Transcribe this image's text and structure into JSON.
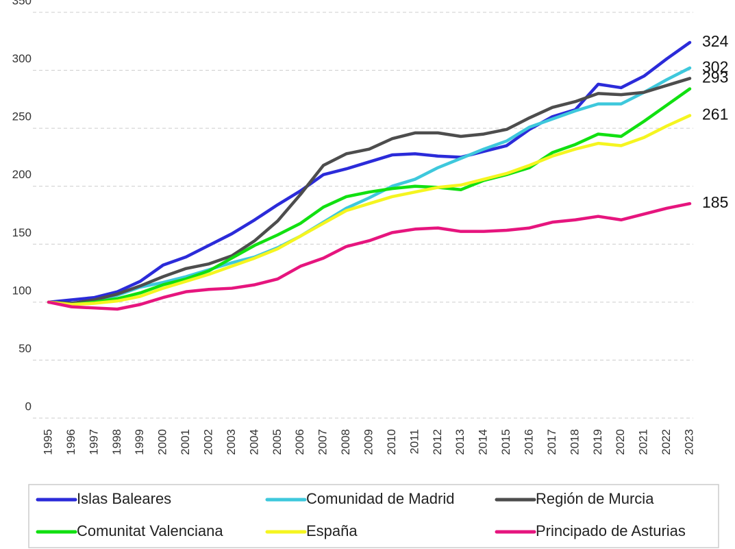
{
  "chart_data": {
    "type": "line",
    "categories": [
      "1995",
      "1996",
      "1997",
      "1998",
      "1999",
      "2000",
      "2001",
      "2002",
      "2003",
      "2004",
      "2005",
      "2006",
      "2007",
      "2008",
      "2009",
      "2010",
      "2011",
      "2012",
      "2013",
      "2014",
      "2015",
      "2016",
      "2017",
      "2018",
      "2019",
      "2020",
      "2021",
      "2022",
      "2023"
    ],
    "ylim": [
      0,
      350
    ],
    "yticks": [
      0,
      50,
      100,
      150,
      200,
      250,
      300,
      350
    ],
    "grid": true,
    "legend": "bottom",
    "series": [
      {
        "name": "Islas Baleares",
        "color": "#2b2bd9",
        "label_end": true,
        "values": [
          100,
          102,
          104,
          109,
          118,
          132,
          139,
          149,
          159,
          171,
          184,
          196,
          210,
          215,
          221,
          227,
          228,
          226,
          225,
          230,
          235,
          249,
          260,
          266,
          288,
          285,
          295,
          310,
          324
        ]
      },
      {
        "name": "Comunidad de Madrid",
        "color": "#3ec8dc",
        "label_end": true,
        "values": [
          100,
          99,
          101,
          106,
          113,
          117,
          122,
          128,
          134,
          139,
          147,
          157,
          169,
          181,
          190,
          200,
          206,
          216,
          224,
          232,
          239,
          251,
          258,
          265,
          271,
          271,
          281,
          292,
          302
        ]
      },
      {
        "name": "Región de Murcia",
        "color": "#4d4d4d",
        "label_end": true,
        "values": [
          100,
          99,
          102,
          107,
          114,
          122,
          129,
          133,
          140,
          153,
          170,
          193,
          218,
          228,
          232,
          241,
          246,
          246,
          243,
          245,
          249,
          259,
          268,
          273,
          280,
          279,
          281,
          287,
          293
        ]
      },
      {
        "name": "Comunitat Valenciana",
        "color": "#11e011",
        "label_end": false,
        "values": [
          100,
          98,
          100,
          103,
          108,
          115,
          120,
          127,
          138,
          149,
          158,
          168,
          182,
          191,
          195,
          198,
          200,
          199,
          197,
          205,
          210,
          216,
          229,
          236,
          245,
          243,
          256,
          270,
          284
        ]
      },
      {
        "name": "España",
        "color": "#f5f520",
        "label_end": true,
        "values": [
          100,
          98,
          99,
          101,
          105,
          112,
          118,
          124,
          131,
          138,
          146,
          157,
          168,
          179,
          185,
          191,
          195,
          199,
          201,
          206,
          211,
          218,
          226,
          232,
          237,
          235,
          242,
          252,
          261
        ]
      },
      {
        "name": "Principado de Asturias",
        "color": "#e6157e",
        "label_end": true,
        "values": [
          100,
          96,
          95,
          94,
          98,
          104,
          109,
          111,
          112,
          115,
          120,
          131,
          138,
          148,
          153,
          160,
          163,
          164,
          161,
          161,
          162,
          164,
          169,
          171,
          174,
          171,
          176,
          181,
          185
        ]
      }
    ]
  }
}
